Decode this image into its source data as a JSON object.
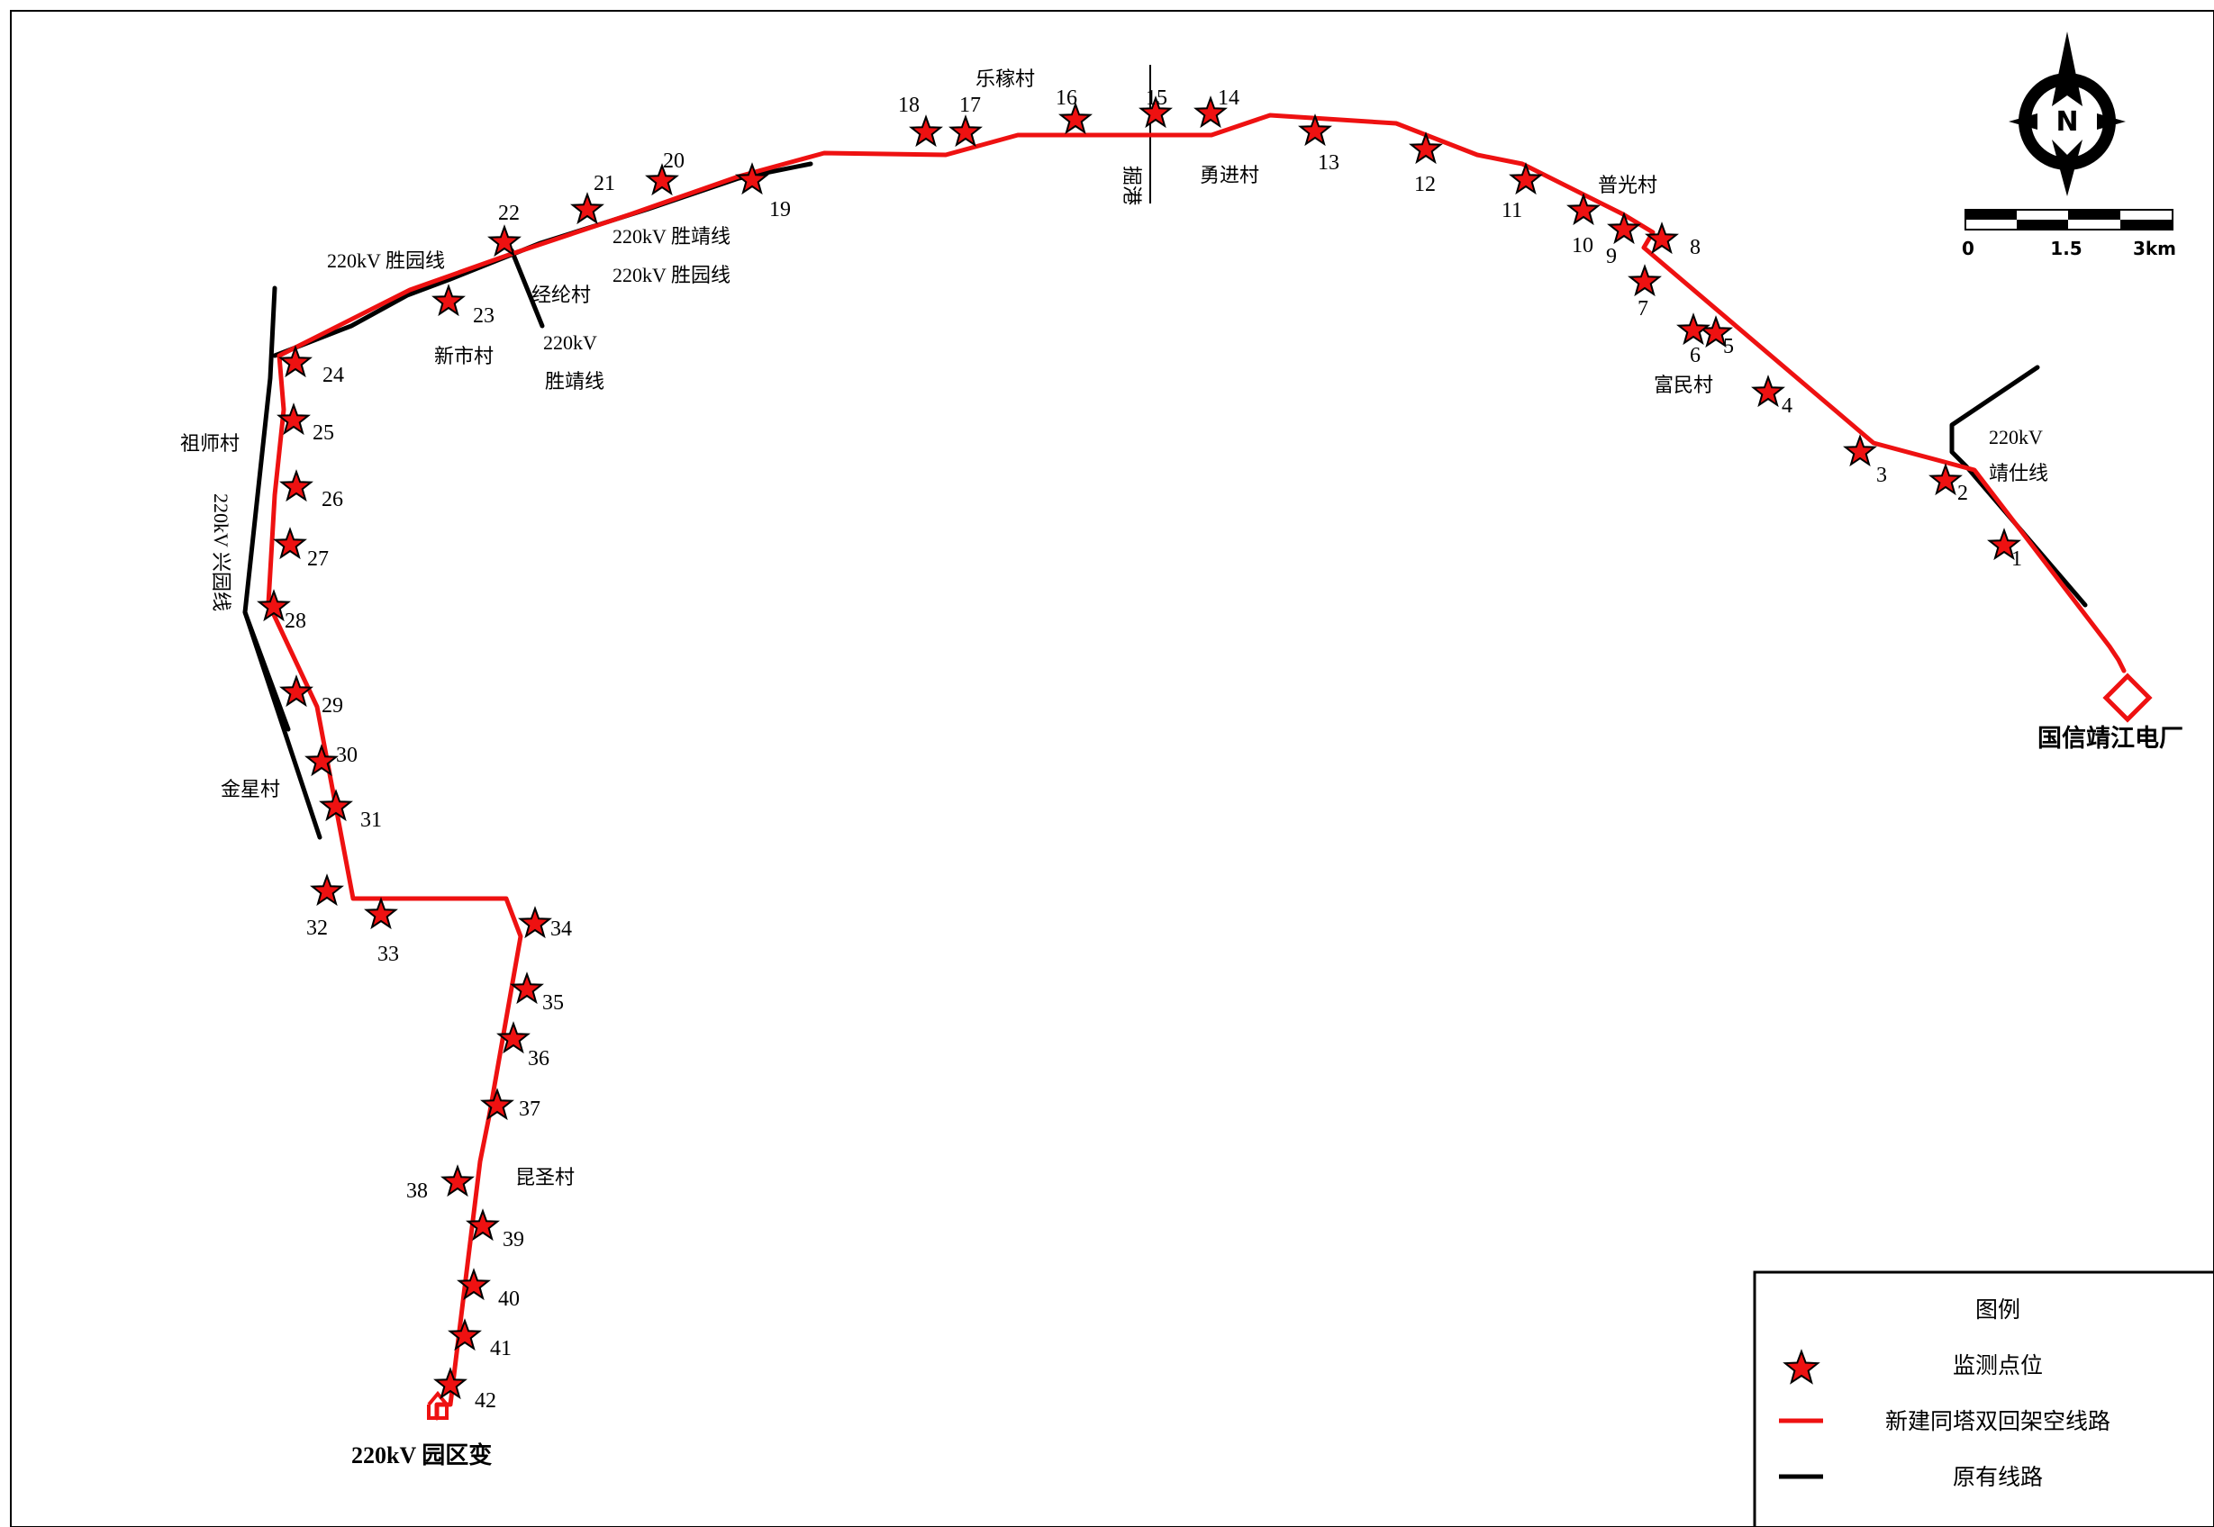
{
  "colors": {
    "new_line": "#ee1111",
    "old_line": "#000000",
    "star_fill": "#ee1111",
    "star_stroke": "#000000",
    "frame": "#000000",
    "background": "#ffffff"
  },
  "map": {
    "monitoring_points": [
      "1",
      "2",
      "3",
      "4",
      "5",
      "6",
      "7",
      "8",
      "9",
      "10",
      "11",
      "12",
      "13",
      "14",
      "15",
      "16",
      "17",
      "18",
      "19",
      "20",
      "21",
      "22",
      "23",
      "24",
      "25",
      "26",
      "27",
      "28",
      "29",
      "30",
      "31",
      "32",
      "33",
      "34",
      "35",
      "36",
      "37",
      "38",
      "39",
      "40",
      "41",
      "42"
    ],
    "places": {
      "lemo_cun": "乐稼村",
      "jue_gang": "掘港",
      "yongjin_cun": "勇进村",
      "puguang_cun": "普光村",
      "fumin_cun": "富民村",
      "jinglun_cun": "经纶村",
      "xinshi_cun": "新市村",
      "zushi_cun": "祖师村",
      "jinxing_cun": "金星村",
      "kunsheng_cun": "昆圣村"
    },
    "lines": {
      "shengyuan_left": "220kV 胜园线",
      "shengjing_a": "220kV 胜靖线",
      "shengyuan_b": "220kV 胜园线",
      "shengjing_c_1": "220kV",
      "shengjing_c_2": "胜靖线",
      "xingyuan": "220kV 兴园线",
      "jingshi_1": "220kV",
      "jingshi_2": "靖仕线"
    },
    "stations": {
      "yuanqu": "220kV 园区变",
      "guoxin": "国信靖江电厂"
    }
  },
  "compass": {
    "label": "N"
  },
  "scale_bar": {
    "ticks": [
      "0",
      "1.5",
      "3km"
    ]
  },
  "legend": {
    "title": "图例",
    "items": [
      {
        "symbol": "star-icon",
        "label": "监测点位"
      },
      {
        "symbol": "red-line",
        "label": "新建同塔双回架空线路"
      },
      {
        "symbol": "black-line",
        "label": "原有线路"
      }
    ]
  }
}
